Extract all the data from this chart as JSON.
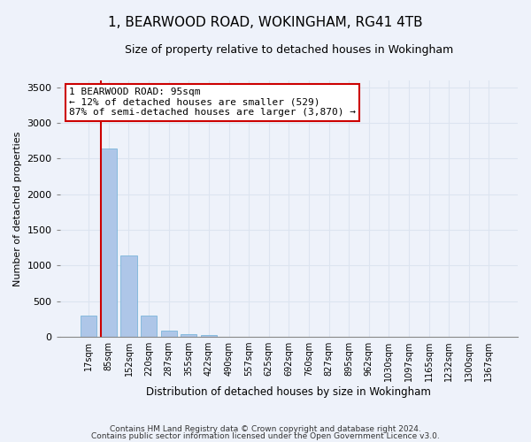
{
  "title": "1, BEARWOOD ROAD, WOKINGHAM, RG41 4TB",
  "subtitle": "Size of property relative to detached houses in Wokingham",
  "xlabel": "Distribution of detached houses by size in Wokingham",
  "ylabel": "Number of detached properties",
  "footnote1": "Contains HM Land Registry data © Crown copyright and database right 2024.",
  "footnote2": "Contains public sector information licensed under the Open Government Licence v3.0.",
  "bar_labels": [
    "17sqm",
    "85sqm",
    "152sqm",
    "220sqm",
    "287sqm",
    "355sqm",
    "422sqm",
    "490sqm",
    "557sqm",
    "625sqm",
    "692sqm",
    "760sqm",
    "827sqm",
    "895sqm",
    "962sqm",
    "1030sqm",
    "1097sqm",
    "1165sqm",
    "1232sqm",
    "1300sqm",
    "1367sqm"
  ],
  "bar_values": [
    300,
    2640,
    1140,
    300,
    90,
    40,
    20,
    0,
    0,
    0,
    0,
    0,
    0,
    0,
    0,
    0,
    0,
    0,
    0,
    0,
    0
  ],
  "bar_color": "#aec6e8",
  "bar_edgecolor": "#6aaed6",
  "ylim": [
    0,
    3600
  ],
  "yticks": [
    0,
    500,
    1000,
    1500,
    2000,
    2500,
    3000,
    3500
  ],
  "annotation_text": "1 BEARWOOD ROAD: 95sqm\n← 12% of detached houses are smaller (529)\n87% of semi-detached houses are larger (3,870) →",
  "annotation_box_color": "#ffffff",
  "annotation_edge_color": "#cc0000",
  "vline_color": "#cc0000",
  "grid_color": "#dce4f0",
  "background_color": "#eef2fa",
  "title_fontsize": 11,
  "subtitle_fontsize": 9
}
